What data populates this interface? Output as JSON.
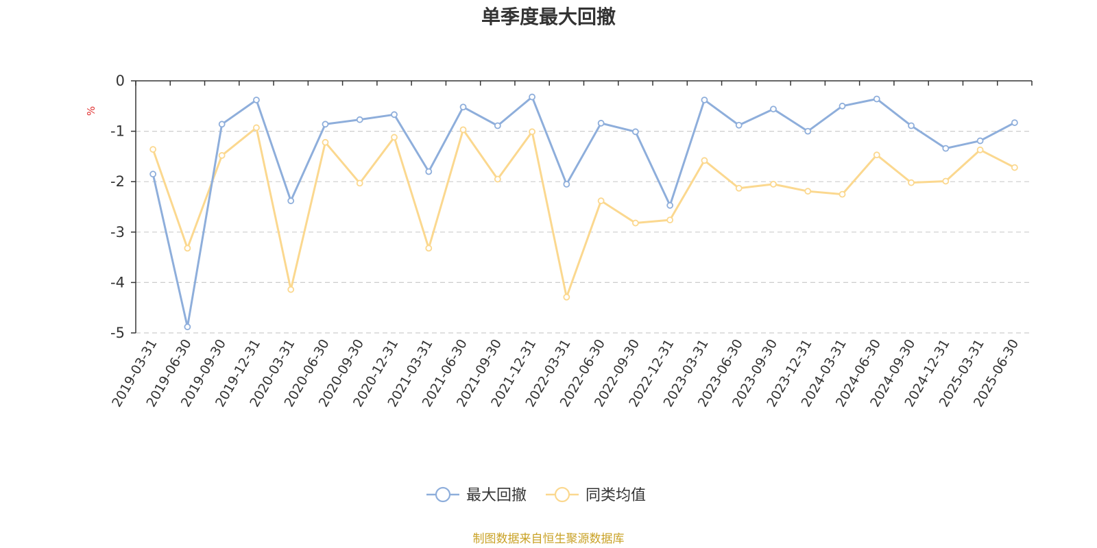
{
  "colors": {
    "series_max_drawdown": "#8eaedb",
    "series_peer_avg": "#fbd88f",
    "unit": "#e03030",
    "source": "#c9a227",
    "text": "#333333",
    "grid": "#cccccc"
  },
  "footer": {
    "source": "制图数据来自恒生聚源数据库"
  },
  "chart_data": {
    "type": "line",
    "title": "单季度最大回撤",
    "ylabel": "%",
    "xlabel": "",
    "ylim": [
      -5,
      0
    ],
    "yticks": [
      0,
      -1,
      -2,
      -3,
      -4,
      -5
    ],
    "grid": "horizontal dashed",
    "legend_position": "bottom-center",
    "categories": [
      "2019-03-31",
      "2019-06-30",
      "2019-09-30",
      "2019-12-31",
      "2020-03-31",
      "2020-06-30",
      "2020-09-30",
      "2020-12-31",
      "2021-03-31",
      "2021-06-30",
      "2021-09-30",
      "2021-12-31",
      "2022-03-31",
      "2022-06-30",
      "2022-09-30",
      "2022-12-31",
      "2023-03-31",
      "2023-06-30",
      "2023-09-30",
      "2023-12-31",
      "2024-03-31",
      "2024-06-30",
      "2024-09-30",
      "2024-12-31",
      "2025-03-31",
      "2025-06-30"
    ],
    "series": [
      {
        "name": "最大回撤",
        "values": [
          -1.85,
          -4.88,
          -0.86,
          -0.38,
          -2.38,
          -0.86,
          -0.77,
          -0.67,
          -1.8,
          -0.52,
          -0.89,
          -0.32,
          -2.05,
          -0.84,
          -1.01,
          -2.47,
          -0.38,
          -0.88,
          -0.56,
          -1.0,
          -0.5,
          -0.36,
          -0.89,
          -1.34,
          -1.19,
          -0.83
        ]
      },
      {
        "name": "同类均值",
        "values": [
          -1.36,
          -3.32,
          -1.48,
          -0.93,
          -4.14,
          -1.22,
          -2.03,
          -1.12,
          -3.32,
          -0.97,
          -1.95,
          -1.01,
          -4.29,
          -2.38,
          -2.82,
          -2.76,
          -1.58,
          -2.13,
          -2.05,
          -2.19,
          -2.25,
          -1.47,
          -2.02,
          -1.99,
          -1.37,
          -1.72
        ]
      }
    ]
  }
}
